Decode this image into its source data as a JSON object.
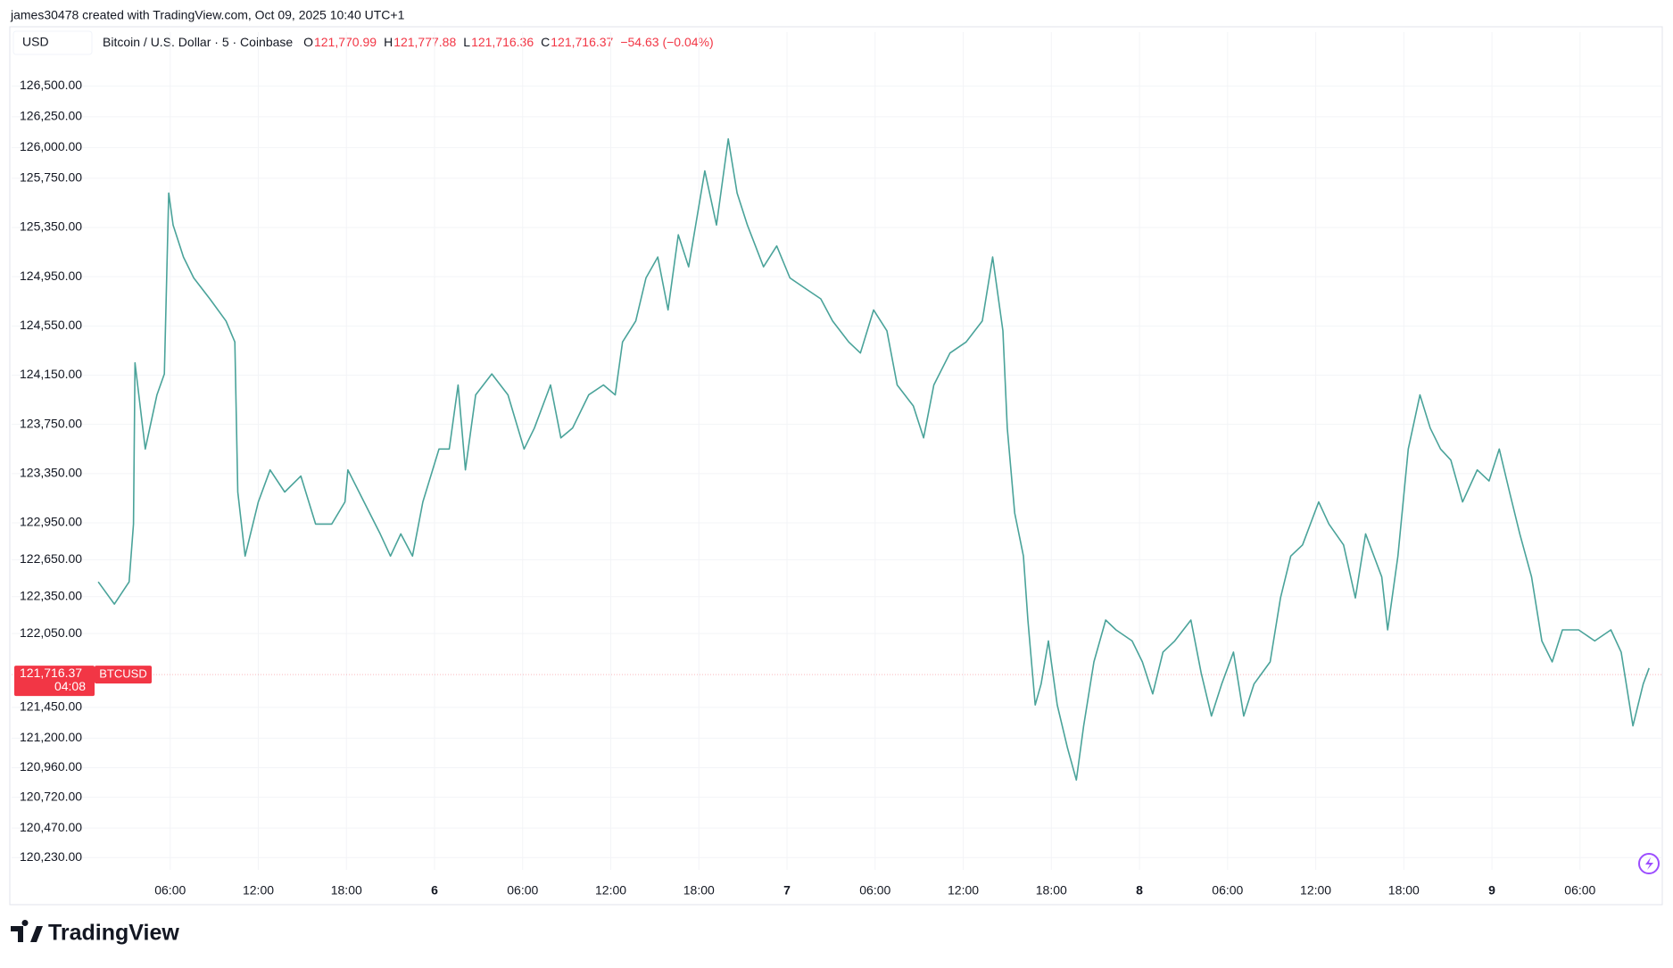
{
  "header": {
    "attribution": "james30478 created with TradingView.com, Oct 09, 2025 10:40 UTC+1",
    "currency": "USD",
    "symbol": "Bitcoin / U.S. Dollar · 5 · Coinbase",
    "ohlc": [
      {
        "key": "O",
        "value": "121,770.99"
      },
      {
        "key": "H",
        "value": "121,777.88"
      },
      {
        "key": "L",
        "value": "121,716.36"
      },
      {
        "key": "C",
        "value": "121,716.37"
      }
    ],
    "change": "−54.63 (−0.04%)"
  },
  "chart_data": {
    "type": "line",
    "x": [
      1.1,
      2.2,
      3.2,
      3.5,
      3.6,
      4.3,
      5.1,
      5.6,
      5.9,
      6.2,
      6.9,
      7.6,
      8.7,
      9.8,
      10.4,
      10.6,
      11.1,
      12.0,
      12.8,
      13.8,
      14.9,
      15.9,
      17.0,
      17.9,
      18.1,
      19.2,
      20.3,
      21.0,
      21.7,
      22.5,
      23.2,
      24.3,
      25.0,
      25.6,
      26.1,
      26.8,
      27.9,
      29.0,
      30.1,
      30.8,
      31.9,
      32.6,
      33.4,
      34.5,
      35.5,
      36.3,
      36.8,
      37.7,
      38.4,
      39.2,
      39.9,
      40.6,
      41.3,
      42.4,
      43.2,
      44.0,
      44.6,
      45.3,
      46.4,
      47.3,
      48.2,
      49.3,
      50.3,
      51.1,
      52.2,
      53.0,
      53.9,
      54.8,
      55.5,
      56.6,
      57.3,
      58.0,
      59.1,
      60.2,
      61.3,
      62.0,
      62.7,
      63.0,
      63.5,
      64.1,
      64.4,
      64.9,
      65.3,
      65.8,
      66.4,
      67.1,
      67.7,
      68.2,
      68.9,
      69.7,
      70.4,
      71.5,
      72.2,
      72.9,
      73.6,
      74.4,
      75.5,
      76.2,
      76.9,
      77.6,
      78.4,
      79.1,
      79.8,
      80.9,
      81.6,
      82.3,
      83.1,
      84.2,
      84.9,
      85.9,
      86.7,
      87.4,
      88.5,
      88.9,
      89.6,
      90.3,
      91.1,
      91.8,
      92.5,
      93.2,
      94.0,
      95.0,
      95.8,
      96.5,
      97.2,
      97.9,
      98.7,
      99.4,
      100.1,
      100.8,
      101.9,
      103.0,
      104.1,
      104.8,
      105.6,
      106.3,
      106.7
    ],
    "series": [
      {
        "name": "BTCUSD",
        "color": "#4aa39a",
        "values": [
          122470,
          122290,
          122470,
          122940,
          124250,
          123550,
          123990,
          124160,
          125630,
          125370,
          125110,
          124940,
          124770,
          124590,
          124420,
          123200,
          122680,
          123120,
          123380,
          123200,
          123330,
          122940,
          122940,
          123120,
          123380,
          123120,
          122860,
          122680,
          122860,
          122680,
          123120,
          123550,
          123550,
          124070,
          123380,
          123990,
          124160,
          123990,
          123550,
          123720,
          124070,
          123640,
          123720,
          123990,
          124070,
          123990,
          124420,
          124590,
          124940,
          125110,
          124680,
          125290,
          125030,
          125810,
          125370,
          126070,
          125630,
          125370,
          125030,
          125200,
          124940,
          124850,
          124770,
          124590,
          124420,
          124330,
          124680,
          124510,
          124070,
          123900,
          123640,
          124070,
          124330,
          124420,
          124590,
          125110,
          124510,
          123720,
          123030,
          122680,
          122160,
          121470,
          121640,
          121990,
          121470,
          121120,
          120860,
          121300,
          121820,
          122160,
          122080,
          121990,
          121820,
          121560,
          121900,
          121990,
          122160,
          121730,
          121380,
          121640,
          121900,
          121380,
          121640,
          121820,
          122340,
          122680,
          122770,
          123120,
          122940,
          122770,
          122340,
          122860,
          122510,
          122080,
          122680,
          123550,
          123990,
          123720,
          123550,
          123460,
          123120,
          123380,
          123290,
          123550,
          123200,
          122860,
          122510,
          121990,
          121820,
          122080,
          122080,
          121990,
          122080,
          121900,
          121300,
          121640,
          121770
        ]
      }
    ],
    "last_price": {
      "value": 121716.37,
      "label": "121,716.37",
      "countdown": "04:08",
      "color": "#f23645"
    },
    "xlim": [
      -4.8,
      107.6
    ],
    "xticks": [
      {
        "value": 6,
        "label": "06:00"
      },
      {
        "value": 12,
        "label": "12:00"
      },
      {
        "value": 18,
        "label": "18:00"
      },
      {
        "value": 24,
        "label": "6"
      },
      {
        "value": 30,
        "label": "06:00"
      },
      {
        "value": 36,
        "label": "12:00"
      },
      {
        "value": 42,
        "label": "18:00"
      },
      {
        "value": 48,
        "label": "7"
      },
      {
        "value": 54,
        "label": "06:00"
      },
      {
        "value": 60,
        "label": "12:00"
      },
      {
        "value": 66,
        "label": "18:00"
      },
      {
        "value": 72,
        "label": "8"
      },
      {
        "value": 78,
        "label": "06:00"
      },
      {
        "value": 84,
        "label": "12:00"
      },
      {
        "value": 90,
        "label": "18:00"
      },
      {
        "value": 96,
        "label": "9"
      },
      {
        "value": 102,
        "label": "06:00"
      }
    ],
    "ylim": [
      120130,
      126720
    ],
    "yticks": [
      {
        "value": 120230,
        "label": "120,230.00"
      },
      {
        "value": 120470,
        "label": "120,470.00"
      },
      {
        "value": 120720,
        "label": "120,720.00"
      },
      {
        "value": 120960,
        "label": "120,960.00"
      },
      {
        "value": 121200,
        "label": "121,200.00"
      },
      {
        "value": 121450,
        "label": "121,450.00"
      },
      {
        "value": 122050,
        "label": "122,050.00"
      },
      {
        "value": 122350,
        "label": "122,350.00"
      },
      {
        "value": 122650,
        "label": "122,650.00"
      },
      {
        "value": 122950,
        "label": "122,950.00"
      },
      {
        "value": 123350,
        "label": "123,350.00"
      },
      {
        "value": 123750,
        "label": "123,750.00"
      },
      {
        "value": 124150,
        "label": "124,150.00"
      },
      {
        "value": 124550,
        "label": "124,550.00"
      },
      {
        "value": 124950,
        "label": "124,950.00"
      },
      {
        "value": 125350,
        "label": "125,350.00"
      },
      {
        "value": 125750,
        "label": "125,750.00"
      },
      {
        "value": 126000,
        "label": "126,000.00"
      },
      {
        "value": 126250,
        "label": "126,250.00"
      },
      {
        "value": 126500,
        "label": "126,500.00"
      }
    ],
    "grid": true
  },
  "footer": {
    "logo": "TradingView"
  }
}
